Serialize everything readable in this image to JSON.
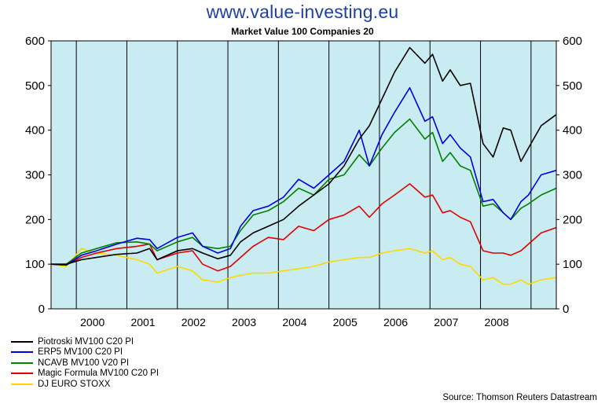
{
  "header": {
    "site": "www.value-investing.eu"
  },
  "footer": {
    "source": "Source: Thomson Reuters Datastream"
  },
  "chart_data": {
    "type": "line",
    "title": "Market Value 100 Companies 20",
    "xlabel": "",
    "ylabel": "",
    "ylim": [
      0,
      600
    ],
    "xlim": [
      1999.0,
      2009.0
    ],
    "yticks": [
      0,
      100,
      200,
      300,
      400,
      500,
      600
    ],
    "year_labels": [
      "2000",
      "2001",
      "2002",
      "2003",
      "2004",
      "2005",
      "2006",
      "2007",
      "2008"
    ],
    "year_label_x": [
      1999.82,
      2000.82,
      2001.82,
      2002.82,
      2003.82,
      2004.82,
      2005.82,
      2006.82,
      2007.82
    ],
    "year_dividers": [
      1999.5,
      2000.5,
      2001.5,
      2002.5,
      2003.5,
      2004.5,
      2005.5,
      2006.5,
      2007.5,
      2008.5
    ],
    "plot_background": "#c8ecf2",
    "grid": false,
    "legend_position": "bottom-left",
    "series": [
      {
        "name": "Piotroski MV100 C20 PI",
        "color": "#000000",
        "x": [
          1999.0,
          1999.3,
          1999.6,
          1999.9,
          2000.3,
          2000.7,
          2000.95,
          2001.1,
          2001.5,
          2001.8,
          2002.0,
          2002.3,
          2002.55,
          2002.75,
          2003.0,
          2003.3,
          2003.6,
          2003.9,
          2004.2,
          2004.5,
          2004.8,
          2005.1,
          2005.3,
          2005.55,
          2005.8,
          2006.1,
          2006.4,
          2006.55,
          2006.75,
          2006.9,
          2007.1,
          2007.3,
          2007.55,
          2007.75,
          2007.95,
          2008.1,
          2008.3,
          2008.45,
          2008.7,
          2009.0
        ],
        "y": [
          100,
          100,
          110,
          115,
          122,
          125,
          135,
          110,
          130,
          135,
          125,
          112,
          120,
          150,
          170,
          185,
          200,
          230,
          255,
          280,
          320,
          380,
          410,
          470,
          530,
          585,
          550,
          570,
          510,
          535,
          500,
          505,
          370,
          340,
          405,
          400,
          330,
          360,
          410,
          435
        ]
      },
      {
        "name": "ERP5 MV100 C20 PI",
        "color": "#0000e0",
        "x": [
          1999.0,
          1999.3,
          1999.6,
          1999.9,
          2000.3,
          2000.7,
          2000.95,
          2001.1,
          2001.5,
          2001.8,
          2002.0,
          2002.3,
          2002.55,
          2002.75,
          2003.0,
          2003.3,
          2003.6,
          2003.9,
          2004.2,
          2004.5,
          2004.8,
          2005.1,
          2005.3,
          2005.55,
          2005.8,
          2006.1,
          2006.4,
          2006.55,
          2006.75,
          2006.9,
          2007.1,
          2007.3,
          2007.55,
          2007.75,
          2007.95,
          2008.1,
          2008.3,
          2008.45,
          2008.7,
          2009.0
        ],
        "y": [
          100,
          98,
          120,
          130,
          145,
          158,
          155,
          135,
          160,
          170,
          140,
          125,
          135,
          185,
          220,
          230,
          250,
          290,
          270,
          300,
          330,
          400,
          320,
          390,
          440,
          495,
          420,
          430,
          370,
          390,
          360,
          340,
          240,
          245,
          215,
          200,
          240,
          255,
          300,
          310
        ]
      },
      {
        "name": "NCAVB MV100 V20 PI",
        "color": "#008000",
        "x": [
          1999.0,
          1999.3,
          1999.6,
          1999.9,
          2000.3,
          2000.7,
          2000.95,
          2001.1,
          2001.5,
          2001.8,
          2002.0,
          2002.3,
          2002.55,
          2002.75,
          2003.0,
          2003.3,
          2003.6,
          2003.9,
          2004.2,
          2004.5,
          2004.8,
          2005.1,
          2005.3,
          2005.55,
          2005.8,
          2006.1,
          2006.4,
          2006.55,
          2006.75,
          2006.9,
          2007.1,
          2007.3,
          2007.55,
          2007.75,
          2007.95,
          2008.1,
          2008.3,
          2008.45,
          2008.7,
          2009.0
        ],
        "y": [
          100,
          100,
          125,
          135,
          148,
          150,
          145,
          130,
          150,
          160,
          140,
          135,
          140,
          175,
          210,
          220,
          240,
          270,
          255,
          290,
          300,
          345,
          320,
          360,
          395,
          425,
          380,
          395,
          330,
          350,
          320,
          310,
          230,
          235,
          215,
          200,
          225,
          235,
          255,
          270
        ]
      },
      {
        "name": "Magic Formula MV100 C20 PI",
        "color": "#e00000",
        "x": [
          1999.0,
          1999.3,
          1999.6,
          1999.9,
          2000.3,
          2000.7,
          2000.95,
          2001.1,
          2001.5,
          2001.8,
          2002.0,
          2002.3,
          2002.55,
          2002.75,
          2003.0,
          2003.3,
          2003.6,
          2003.9,
          2004.2,
          2004.5,
          2004.8,
          2005.1,
          2005.3,
          2005.55,
          2005.8,
          2006.1,
          2006.4,
          2006.55,
          2006.75,
          2006.9,
          2007.1,
          2007.3,
          2007.55,
          2007.75,
          2007.95,
          2008.1,
          2008.3,
          2008.45,
          2008.7,
          2009.0
        ],
        "y": [
          100,
          98,
          115,
          125,
          135,
          140,
          145,
          110,
          125,
          130,
          100,
          85,
          95,
          115,
          140,
          160,
          155,
          185,
          175,
          200,
          210,
          230,
          205,
          235,
          255,
          280,
          250,
          255,
          215,
          220,
          205,
          195,
          130,
          125,
          125,
          120,
          130,
          145,
          170,
          182
        ]
      },
      {
        "name": "DJ EURO STOXX",
        "color": "#ffd700",
        "x": [
          1999.0,
          1999.3,
          1999.6,
          1999.9,
          2000.3,
          2000.7,
          2000.95,
          2001.1,
          2001.5,
          2001.8,
          2002.0,
          2002.3,
          2002.55,
          2002.75,
          2003.0,
          2003.3,
          2003.6,
          2003.9,
          2004.2,
          2004.5,
          2004.8,
          2005.1,
          2005.3,
          2005.55,
          2005.8,
          2006.1,
          2006.4,
          2006.55,
          2006.75,
          2006.9,
          2007.1,
          2007.3,
          2007.55,
          2007.75,
          2007.95,
          2008.1,
          2008.3,
          2008.45,
          2008.7,
          2009.0
        ],
        "y": [
          100,
          95,
          135,
          125,
          120,
          110,
          100,
          80,
          95,
          85,
          65,
          60,
          70,
          75,
          80,
          80,
          85,
          90,
          95,
          105,
          110,
          115,
          115,
          125,
          130,
          135,
          125,
          130,
          110,
          115,
          100,
          95,
          65,
          70,
          55,
          55,
          65,
          55,
          65,
          70
        ]
      }
    ]
  }
}
